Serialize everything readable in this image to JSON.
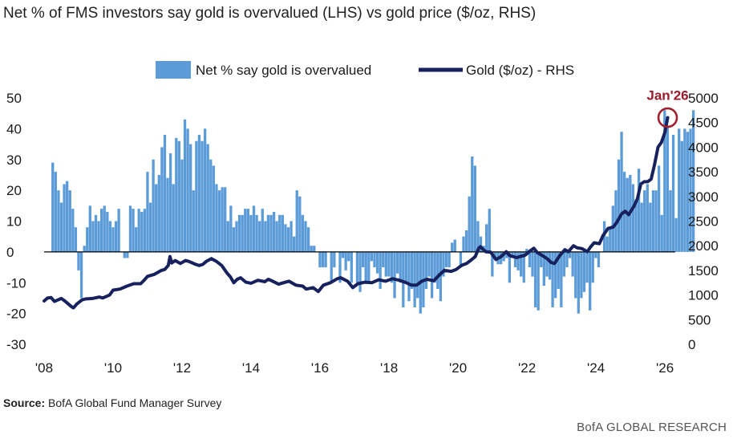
{
  "title": "Net % of FMS investors say gold is overvalued (LHS) vs gold price ($/oz, RHS)",
  "source_label": "Source:",
  "source_text": "BofA Global Fund Manager Survey",
  "brand": "BofA GLOBAL RESEARCH",
  "colors": {
    "bars": "#5b9bd8",
    "line": "#16215e",
    "circle": "#a31f2d",
    "annotation": "#9b1b2a"
  },
  "chart_data": {
    "type": "bar",
    "title": "Net % of FMS investors say gold is overvalued (LHS) vs gold price ($/oz, RHS)",
    "legend": [
      "Net % say gold is overvalued",
      "Gold ($/oz) - RHS"
    ],
    "legend_position": "top-center",
    "x_ticks": [
      "'08",
      "'10",
      "'12",
      "'14",
      "'16",
      "'18",
      "'20",
      "'22",
      "'24",
      "'26"
    ],
    "x_range": [
      2008.0,
      2026.3
    ],
    "y_left_ticks": [
      "50",
      "40",
      "30",
      "20",
      "10",
      "0",
      "-10",
      "-20",
      "-30"
    ],
    "y_left_range": [
      -30,
      50
    ],
    "y_right_ticks": [
      "5000",
      "4500",
      "4000",
      "3500",
      "3000",
      "2500",
      "2000",
      "1500",
      "1000",
      "500",
      "0"
    ],
    "y_right_range": [
      0,
      5000
    ],
    "annotation": "Jan'26",
    "series": [
      {
        "name": "Net % say gold is overvalued",
        "kind": "bar",
        "axis": "left",
        "start": 2008.25,
        "step": 0.0833,
        "values": [
          29,
          26,
          20,
          16,
          22,
          23,
          20,
          14,
          8,
          -6,
          -15,
          2,
          8,
          15,
          10,
          12,
          10,
          14,
          15,
          13,
          10,
          8,
          10,
          14,
          0,
          -2,
          -2,
          15,
          14,
          8,
          14,
          13,
          14,
          26,
          16,
          30,
          22,
          25,
          34,
          38,
          24,
          32,
          22,
          37,
          36,
          30,
          43,
          40,
          35,
          20,
          36,
          38,
          36,
          40,
          35,
          30,
          28,
          22,
          20,
          21,
          21,
          10,
          15,
          8,
          10,
          12,
          12,
          14,
          14,
          12,
          15,
          12,
          10,
          14,
          10,
          12,
          12,
          13,
          10,
          12,
          12,
          9,
          8,
          10,
          5,
          20,
          18,
          12,
          10,
          8,
          2,
          2,
          0,
          -5,
          -5,
          -5,
          0,
          -10,
          -5,
          0,
          -10,
          -2,
          -6,
          -3,
          -10,
          0,
          -10,
          -13,
          -5,
          -10,
          -10,
          -3,
          -5,
          -7,
          -12,
          -5,
          -8,
          -8,
          -10,
          -15,
          -7,
          -10,
          -18,
          -10,
          -16,
          -12,
          -18,
          -15,
          -20,
          -18,
          -12,
          -8,
          -15,
          -10,
          -12,
          -16,
          -8,
          -5,
          -5,
          3,
          4,
          0,
          -5,
          5,
          7,
          18,
          31,
          28,
          10,
          5,
          2,
          9,
          14,
          -8,
          -2,
          -4,
          -4,
          -3,
          -2,
          -10,
          -2,
          -5,
          -6,
          -8,
          -10,
          1,
          -5,
          -8,
          -18,
          -19,
          -5,
          -11,
          -8,
          -9,
          -18,
          -15,
          -12,
          -18,
          -8,
          -5,
          -2,
          -8,
          -15,
          -20,
          -15,
          -13,
          -10,
          -19,
          -10,
          -2,
          -5,
          0,
          10,
          5,
          8,
          15,
          20,
          30,
          39,
          26,
          24,
          25,
          22,
          17,
          27,
          16,
          20,
          22,
          16,
          20,
          20,
          28,
          12,
          46,
          41,
          20,
          38,
          11,
          40,
          36,
          40,
          39,
          40,
          46
        ]
      },
      {
        "name": "Gold ($/oz) - RHS",
        "kind": "line",
        "axis": "right",
        "points": [
          [
            2008.0,
            880
          ],
          [
            2008.1,
            940
          ],
          [
            2008.2,
            950
          ],
          [
            2008.3,
            870
          ],
          [
            2008.4,
            900
          ],
          [
            2008.5,
            930
          ],
          [
            2008.6,
            880
          ],
          [
            2008.7,
            820
          ],
          [
            2008.8,
            760
          ],
          [
            2008.85,
            740
          ],
          [
            2008.95,
            820
          ],
          [
            2009.1,
            900
          ],
          [
            2009.2,
            920
          ],
          [
            2009.4,
            930
          ],
          [
            2009.6,
            960
          ],
          [
            2009.7,
            940
          ],
          [
            2009.9,
            1000
          ],
          [
            2010.0,
            1100
          ],
          [
            2010.2,
            1120
          ],
          [
            2010.4,
            1180
          ],
          [
            2010.6,
            1230
          ],
          [
            2010.8,
            1230
          ],
          [
            2010.9,
            1300
          ],
          [
            2011.0,
            1380
          ],
          [
            2011.2,
            1420
          ],
          [
            2011.4,
            1500
          ],
          [
            2011.5,
            1520
          ],
          [
            2011.6,
            1600
          ],
          [
            2011.65,
            1780
          ],
          [
            2011.7,
            1650
          ],
          [
            2011.8,
            1700
          ],
          [
            2011.95,
            1640
          ],
          [
            2012.1,
            1700
          ],
          [
            2012.2,
            1680
          ],
          [
            2012.4,
            1620
          ],
          [
            2012.5,
            1600
          ],
          [
            2012.6,
            1620
          ],
          [
            2012.7,
            1680
          ],
          [
            2012.85,
            1740
          ],
          [
            2013.0,
            1680
          ],
          [
            2013.15,
            1600
          ],
          [
            2013.3,
            1450
          ],
          [
            2013.4,
            1370
          ],
          [
            2013.5,
            1250
          ],
          [
            2013.6,
            1320
          ],
          [
            2013.7,
            1350
          ],
          [
            2013.85,
            1260
          ],
          [
            2014.0,
            1240
          ],
          [
            2014.2,
            1300
          ],
          [
            2014.4,
            1270
          ],
          [
            2014.5,
            1320
          ],
          [
            2014.6,
            1290
          ],
          [
            2014.8,
            1220
          ],
          [
            2015.0,
            1260
          ],
          [
            2015.1,
            1280
          ],
          [
            2015.3,
            1200
          ],
          [
            2015.5,
            1180
          ],
          [
            2015.6,
            1120
          ],
          [
            2015.8,
            1150
          ],
          [
            2015.95,
            1070
          ],
          [
            2016.1,
            1200
          ],
          [
            2016.3,
            1250
          ],
          [
            2016.5,
            1330
          ],
          [
            2016.6,
            1350
          ],
          [
            2016.8,
            1280
          ],
          [
            2016.95,
            1150
          ],
          [
            2017.1,
            1230
          ],
          [
            2017.3,
            1260
          ],
          [
            2017.5,
            1250
          ],
          [
            2017.7,
            1310
          ],
          [
            2017.9,
            1280
          ],
          [
            2018.1,
            1330
          ],
          [
            2018.3,
            1300
          ],
          [
            2018.5,
            1250
          ],
          [
            2018.65,
            1200
          ],
          [
            2018.8,
            1200
          ],
          [
            2018.95,
            1280
          ],
          [
            2019.1,
            1320
          ],
          [
            2019.3,
            1290
          ],
          [
            2019.45,
            1400
          ],
          [
            2019.6,
            1500
          ],
          [
            2019.8,
            1480
          ],
          [
            2019.95,
            1520
          ],
          [
            2020.1,
            1600
          ],
          [
            2020.25,
            1640
          ],
          [
            2020.4,
            1720
          ],
          [
            2020.5,
            1780
          ],
          [
            2020.6,
            1950
          ],
          [
            2020.65,
            1980
          ],
          [
            2020.8,
            1880
          ],
          [
            2020.95,
            1870
          ],
          [
            2021.1,
            1720
          ],
          [
            2021.25,
            1780
          ],
          [
            2021.4,
            1880
          ],
          [
            2021.5,
            1800
          ],
          [
            2021.7,
            1760
          ],
          [
            2021.8,
            1780
          ],
          [
            2021.95,
            1810
          ],
          [
            2022.1,
            1900
          ],
          [
            2022.2,
            1950
          ],
          [
            2022.3,
            1860
          ],
          [
            2022.45,
            1800
          ],
          [
            2022.6,
            1730
          ],
          [
            2022.7,
            1660
          ],
          [
            2022.8,
            1640
          ],
          [
            2022.95,
            1800
          ],
          [
            2023.1,
            1920
          ],
          [
            2023.2,
            1880
          ],
          [
            2023.35,
            2000
          ],
          [
            2023.45,
            1960
          ],
          [
            2023.6,
            1940
          ],
          [
            2023.75,
            1880
          ],
          [
            2023.85,
            1980
          ],
          [
            2023.95,
            2060
          ],
          [
            2024.1,
            2040
          ],
          [
            2024.2,
            2200
          ],
          [
            2024.35,
            2350
          ],
          [
            2024.5,
            2380
          ],
          [
            2024.6,
            2470
          ],
          [
            2024.75,
            2650
          ],
          [
            2024.85,
            2700
          ],
          [
            2024.95,
            2630
          ],
          [
            2025.1,
            2800
          ],
          [
            2025.2,
            2950
          ],
          [
            2025.3,
            3250
          ],
          [
            2025.4,
            3300
          ],
          [
            2025.5,
            3300
          ],
          [
            2025.6,
            3350
          ],
          [
            2025.7,
            3650
          ],
          [
            2025.8,
            4000
          ],
          [
            2025.9,
            4100
          ],
          [
            2026.0,
            4300
          ],
          [
            2026.08,
            4600
          ]
        ]
      }
    ]
  }
}
